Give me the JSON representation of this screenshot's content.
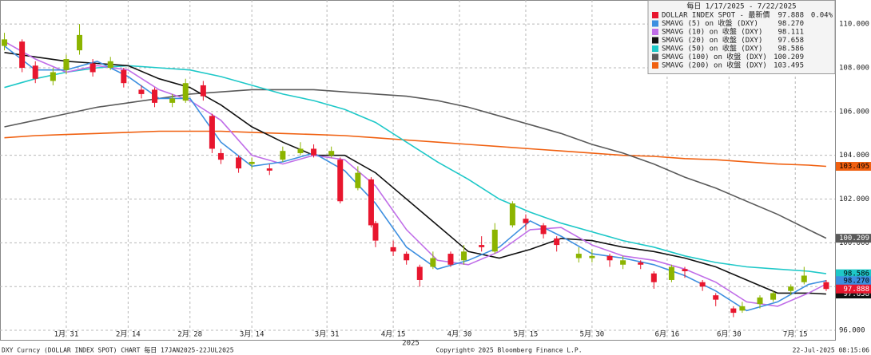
{
  "chart_data": {
    "type": "candlestick",
    "header": "每日 1/17/2025 - 7/22/2025",
    "name": "DOLLAR INDEX SPOT - 最新價",
    "legend_value": "97.888",
    "change": "0.04%",
    "color": "#e8162e",
    "up_color": "#8cb400",
    "down_color": "#e8162e",
    "x": [
      "2025-01-17",
      "2025-01-21",
      "2025-01-24",
      "2025-01-28",
      "2025-01-31",
      "2025-02-03",
      "2025-02-06",
      "2025-02-10",
      "2025-02-13",
      "2025-02-17",
      "2025-02-20",
      "2025-02-24",
      "2025-02-27",
      "2025-03-03",
      "2025-03-05",
      "2025-03-07",
      "2025-03-11",
      "2025-03-14",
      "2025-03-18",
      "2025-03-21",
      "2025-03-25",
      "2025-03-28",
      "2025-04-01",
      "2025-04-03",
      "2025-04-07",
      "2025-04-10",
      "2025-04-11",
      "2025-04-15",
      "2025-04-18",
      "2025-04-21",
      "2025-04-24",
      "2025-04-28",
      "2025-05-01",
      "2025-05-05",
      "2025-05-08",
      "2025-05-12",
      "2025-05-15",
      "2025-05-19",
      "2025-05-22",
      "2025-05-27",
      "2025-05-30",
      "2025-06-03",
      "2025-06-06",
      "2025-06-10",
      "2025-06-13",
      "2025-06-17",
      "2025-06-20",
      "2025-06-24",
      "2025-06-27",
      "2025-07-01",
      "2025-07-03",
      "2025-07-07",
      "2025-07-10",
      "2025-07-14",
      "2025-07-17",
      "2025-07-22"
    ],
    "open": [
      109.0,
      109.2,
      108.1,
      107.4,
      107.9,
      108.8,
      108.2,
      108.0,
      107.9,
      107.0,
      107.0,
      106.4,
      106.5,
      107.2,
      105.8,
      104.1,
      103.9,
      103.6,
      103.4,
      103.8,
      104.1,
      104.3,
      104.0,
      103.8,
      102.5,
      102.9,
      100.9,
      99.8,
      99.5,
      98.9,
      98.9,
      99.5,
      99.2,
      99.9,
      99.6,
      100.8,
      101.1,
      100.8,
      100.2,
      99.3,
      99.3,
      99.4,
      99.0,
      99.1,
      98.6,
      98.3,
      98.8,
      98.2,
      97.6,
      97.0,
      96.9,
      97.2,
      97.4,
      97.8,
      98.2,
      98.2
    ],
    "high": [
      109.6,
      109.3,
      108.3,
      108.0,
      108.6,
      110.0,
      108.4,
      108.5,
      108.0,
      107.2,
      107.1,
      106.8,
      107.5,
      107.4,
      105.9,
      104.3,
      104.0,
      103.9,
      103.6,
      104.4,
      104.6,
      104.5,
      104.4,
      103.9,
      103.5,
      103.0,
      101.0,
      100.1,
      99.6,
      99.0,
      99.6,
      99.6,
      99.9,
      100.3,
      100.9,
      101.9,
      101.3,
      100.9,
      100.3,
      99.8,
      99.7,
      99.5,
      99.4,
      99.2,
      98.7,
      99.0,
      98.9,
      98.3,
      97.7,
      97.1,
      97.3,
      97.6,
      97.8,
      98.1,
      98.9,
      98.3
    ],
    "low": [
      108.8,
      107.8,
      107.3,
      107.2,
      107.7,
      108.6,
      107.6,
      107.9,
      107.1,
      106.6,
      106.2,
      106.2,
      106.4,
      106.5,
      104.1,
      103.6,
      103.2,
      103.4,
      103.1,
      103.7,
      104.0,
      103.9,
      103.9,
      101.8,
      102.4,
      100.7,
      99.8,
      99.4,
      99.0,
      98.0,
      98.8,
      98.9,
      99.0,
      99.6,
      99.5,
      100.7,
      100.6,
      100.2,
      99.6,
      99.1,
      99.1,
      98.9,
      98.8,
      98.8,
      97.9,
      98.2,
      98.4,
      97.8,
      97.1,
      96.6,
      96.8,
      97.0,
      97.3,
      97.6,
      98.1,
      97.8
    ],
    "close": [
      109.3,
      108.0,
      107.5,
      107.8,
      108.4,
      109.5,
      107.8,
      108.3,
      107.3,
      106.8,
      106.4,
      106.6,
      107.3,
      106.7,
      104.3,
      103.8,
      103.4,
      103.7,
      103.3,
      104.2,
      104.3,
      104.0,
      104.2,
      101.9,
      103.2,
      100.8,
      100.1,
      99.6,
      99.2,
      98.3,
      99.3,
      99.0,
      99.6,
      99.8,
      100.6,
      101.8,
      100.9,
      100.4,
      99.9,
      99.5,
      99.4,
      99.2,
      99.2,
      99.0,
      98.2,
      98.9,
      98.7,
      98.0,
      97.4,
      96.8,
      97.1,
      97.5,
      97.7,
      98.0,
      98.5,
      97.888
    ],
    "ma_x": [
      "2025-01-17",
      "2025-01-24",
      "2025-01-31",
      "2025-02-07",
      "2025-02-14",
      "2025-02-21",
      "2025-02-28",
      "2025-03-07",
      "2025-03-14",
      "2025-03-21",
      "2025-03-28",
      "2025-04-04",
      "2025-04-11",
      "2025-04-18",
      "2025-04-25",
      "2025-05-02",
      "2025-05-09",
      "2025-05-16",
      "2025-05-23",
      "2025-05-30",
      "2025-06-06",
      "2025-06-13",
      "2025-06-20",
      "2025-06-27",
      "2025-07-04",
      "2025-07-11",
      "2025-07-18",
      "2025-07-22"
    ],
    "overlays": [
      {
        "name": "SMAVG (5)  on 收盤 (DXY)",
        "color": "#3d8fe0",
        "legend_value": "98.270",
        "values": [
          109.0,
          107.9,
          107.9,
          108.3,
          107.6,
          106.6,
          106.6,
          104.6,
          103.5,
          103.7,
          104.1,
          103.3,
          101.8,
          99.8,
          98.8,
          99.2,
          99.8,
          101.0,
          100.3,
          99.5,
          99.3,
          99.0,
          98.5,
          97.8,
          96.9,
          97.3,
          98.1,
          98.27
        ]
      },
      {
        "name": "SMAVG (10)  on 收盤 (DXY)",
        "color": "#c06ee8",
        "legend_value": "98.111",
        "values": [
          109.2,
          108.4,
          107.8,
          108.1,
          107.9,
          107.0,
          106.5,
          105.6,
          104.0,
          103.6,
          104.0,
          103.8,
          102.6,
          100.6,
          99.2,
          99.0,
          99.6,
          100.6,
          100.7,
          99.9,
          99.4,
          99.2,
          98.8,
          98.2,
          97.3,
          97.1,
          97.7,
          98.111
        ]
      },
      {
        "name": "SMAVG (20)  on 收盤 (DXY)",
        "color": "#111111",
        "legend_value": "97.658",
        "values": [
          108.7,
          108.5,
          108.3,
          108.2,
          108.1,
          107.5,
          107.1,
          106.3,
          105.3,
          104.6,
          104.0,
          104.0,
          103.2,
          102.0,
          100.8,
          99.6,
          99.3,
          99.7,
          100.2,
          100.1,
          99.8,
          99.6,
          99.3,
          98.9,
          98.3,
          97.7,
          97.7,
          97.658
        ]
      },
      {
        "name": "SMAVG (50)  on 收盤 (DXY)",
        "color": "#1ec8c8",
        "legend_value": "98.586",
        "values": [
          107.1,
          107.5,
          107.8,
          108.0,
          108.1,
          108.0,
          107.9,
          107.6,
          107.2,
          106.8,
          106.5,
          106.1,
          105.5,
          104.6,
          103.7,
          102.9,
          102.0,
          101.4,
          100.9,
          100.5,
          100.1,
          99.8,
          99.4,
          99.1,
          98.9,
          98.8,
          98.7,
          98.586
        ]
      },
      {
        "name": "SMAVG (100)  on 收盤 (DXY)",
        "color": "#5a5a5a",
        "legend_value": "100.209",
        "values": [
          105.3,
          105.6,
          105.9,
          106.2,
          106.4,
          106.6,
          106.8,
          106.9,
          107.0,
          107.0,
          107.0,
          106.9,
          106.8,
          106.7,
          106.5,
          106.2,
          105.8,
          105.4,
          105.0,
          104.5,
          104.1,
          103.6,
          103.0,
          102.5,
          101.9,
          101.3,
          100.6,
          100.209
        ]
      },
      {
        "name": "SMAVG (200)  on 收盤 (DXY)",
        "color": "#f06010",
        "legend_value": "103.495",
        "values": [
          104.8,
          104.9,
          104.95,
          105.0,
          105.05,
          105.1,
          105.1,
          105.1,
          105.05,
          105.0,
          104.95,
          104.9,
          104.8,
          104.7,
          104.6,
          104.5,
          104.4,
          104.3,
          104.2,
          104.1,
          104.0,
          103.95,
          103.85,
          103.8,
          103.7,
          103.6,
          103.55,
          103.495
        ]
      }
    ],
    "xlim": [
      "2025-01-16",
      "2025-07-24"
    ],
    "ylim": [
      95.6,
      111.1
    ],
    "yticks": [
      {
        "value": 96,
        "label": "96.000"
      },
      {
        "value": 98,
        "label": "98.000"
      },
      {
        "value": 100,
        "label": "100.000"
      },
      {
        "value": 102,
        "label": "102.000"
      },
      {
        "value": 104,
        "label": "104.000"
      },
      {
        "value": 106,
        "label": "106.000"
      },
      {
        "value": 108,
        "label": "108.000"
      },
      {
        "value": 110,
        "label": "110.000"
      }
    ],
    "xticks": [
      {
        "value": "2025-01-31",
        "label": "1月 31"
      },
      {
        "value": "2025-02-14",
        "label": "2月 14"
      },
      {
        "value": "2025-02-28",
        "label": "2月 28"
      },
      {
        "value": "2025-03-14",
        "label": "3月 14"
      },
      {
        "value": "2025-03-31",
        "label": "3月 31"
      },
      {
        "value": "2025-04-15",
        "label": "4月 15"
      },
      {
        "value": "2025-04-30",
        "label": "4月 30"
      },
      {
        "value": "2025-05-15",
        "label": "5月 15"
      },
      {
        "value": "2025-05-30",
        "label": "5月 30"
      },
      {
        "value": "2025-06-16",
        "label": "6月 16"
      },
      {
        "value": "2025-06-30",
        "label": "6月 30"
      },
      {
        "value": "2025-07-15",
        "label": "7月 15"
      }
    ],
    "year_label": "2025",
    "grid": true,
    "footer_left": "DXY Curncy (DOLLAR INDEX SPOT) CHART  每日 17JAN2025-22JUL2025",
    "footer_center": "Copyright© 2025 Bloomberg Finance L.P.",
    "footer_right": "22-Jul-2025 08:15:06"
  }
}
